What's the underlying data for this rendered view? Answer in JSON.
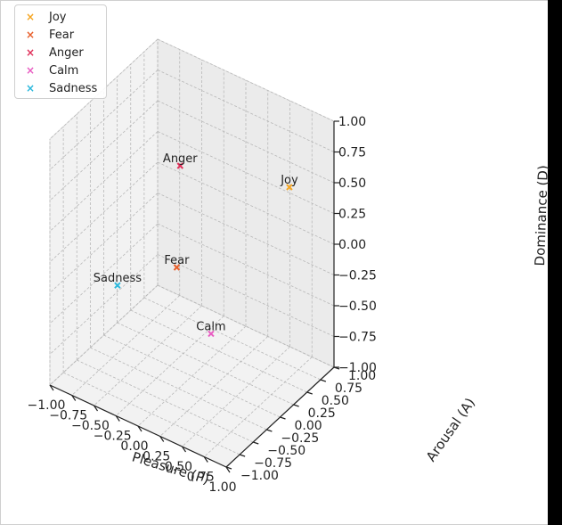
{
  "chart_data": {
    "type": "scatter",
    "projection": "3d",
    "title": "",
    "xlabel": "Pleasure (P)",
    "ylabel": "Arousal (A)",
    "zlabel": "Dominance (D)",
    "xlim": [
      -1.0,
      1.0
    ],
    "ylim": [
      -1.0,
      1.0
    ],
    "zlim": [
      -1.0,
      1.0
    ],
    "grid": true,
    "legend_position": "top-left",
    "ticks": [
      "−1.00",
      "−0.75",
      "−0.50",
      "−0.25",
      "0.00",
      "0.25",
      "0.50",
      "0.75",
      "1.00"
    ],
    "marker": "x",
    "series": [
      {
        "name": "Joy",
        "color": "#F5A623",
        "x": 0.8,
        "y": 0.5,
        "z": 0.6
      },
      {
        "name": "Fear",
        "color": "#E8602C",
        "x": -0.6,
        "y": 0.7,
        "z": -0.6
      },
      {
        "name": "Anger",
        "color": "#E0305A",
        "x": -0.5,
        "y": 0.6,
        "z": 0.3
      },
      {
        "name": "Calm",
        "color": "#E85DC2",
        "x": 0.4,
        "y": -0.3,
        "z": -0.4
      },
      {
        "name": "Sadness",
        "color": "#2BB8DC",
        "x": -0.6,
        "y": -0.4,
        "z": -0.3
      }
    ]
  }
}
